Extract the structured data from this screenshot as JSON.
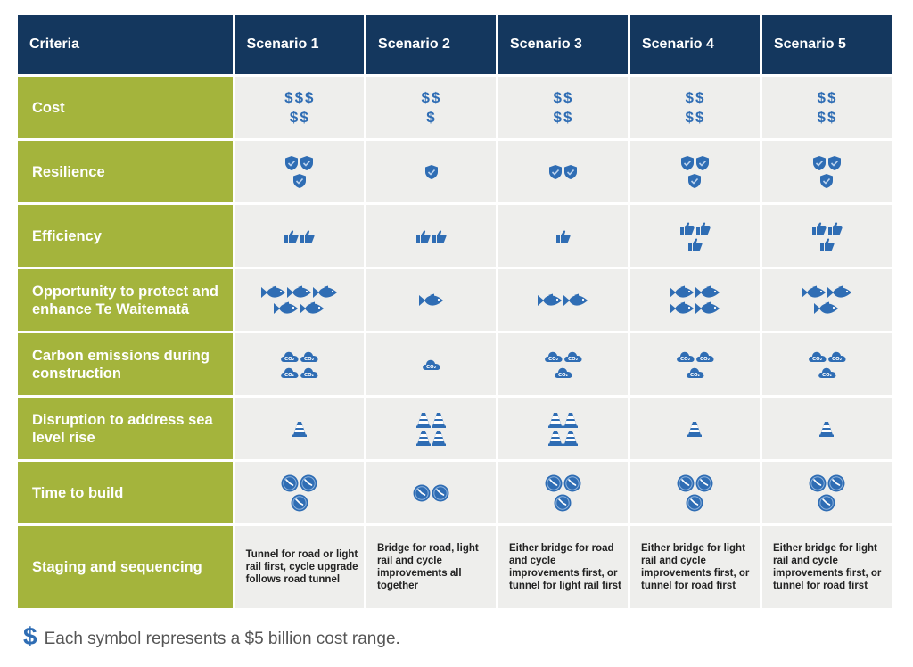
{
  "table": {
    "headers": [
      "Criteria",
      "Scenario 1",
      "Scenario 2",
      "Scenario 3",
      "Scenario 4",
      "Scenario 5"
    ],
    "rows": [
      {
        "criteria": "Cost",
        "icon": "dollar-icon",
        "counts": [
          [
            3,
            2
          ],
          [
            2,
            1
          ],
          [
            2,
            2
          ],
          [
            2,
            2
          ],
          [
            2,
            2
          ]
        ]
      },
      {
        "criteria": "Resilience",
        "icon": "shield-icon",
        "counts": [
          [
            2,
            1
          ],
          [
            1
          ],
          [
            2
          ],
          [
            2,
            1
          ],
          [
            2,
            1
          ]
        ]
      },
      {
        "criteria": "Efficiency",
        "icon": "thumbs-up-icon",
        "counts": [
          [
            2
          ],
          [
            2
          ],
          [
            1
          ],
          [
            2,
            1
          ],
          [
            2,
            1
          ]
        ]
      },
      {
        "criteria": "Opportunity to protect and enhance Te Waitematā",
        "icon": "fish-icon",
        "counts": [
          [
            3,
            2
          ],
          [
            1
          ],
          [
            2
          ],
          [
            2,
            2
          ],
          [
            2,
            1
          ]
        ]
      },
      {
        "criteria": "Carbon emissions during construction",
        "icon": "co2-cloud-icon",
        "counts": [
          [
            2,
            2
          ],
          [
            1
          ],
          [
            2,
            1
          ],
          [
            2,
            1
          ],
          [
            2,
            1
          ]
        ]
      },
      {
        "criteria": "Disruption to address sea level rise",
        "icon": "traffic-cone-icon",
        "counts": [
          [
            1
          ],
          [
            2,
            2
          ],
          [
            2,
            2
          ],
          [
            1
          ],
          [
            1
          ]
        ]
      },
      {
        "criteria": "Time to build",
        "icon": "clock-icon",
        "counts": [
          [
            2,
            1
          ],
          [
            2
          ],
          [
            2,
            1
          ],
          [
            2,
            1
          ],
          [
            2,
            1
          ]
        ]
      }
    ],
    "staging": {
      "criteria": "Staging and sequencing",
      "texts": [
        "Tunnel for road or light rail first, cycle upgrade follows road tunnel",
        "Bridge for road, light rail and cycle improvements all together",
        "Either bridge for road and cycle improvements first, or tunnel for light rail first",
        "Either bridge for light rail and cycle improvements first, or tunnel for road first",
        "Either bridge for light rail and cycle improvements first, or tunnel for road first"
      ]
    }
  },
  "legend": {
    "symbol": "$",
    "text": "Each symbol represents a $5 billion cost range."
  },
  "colors": {
    "header_bg": "#14375e",
    "criteria_bg": "#a4b43c",
    "cell_bg": "#eeeeec",
    "icon_blue": "#2f6db4"
  }
}
